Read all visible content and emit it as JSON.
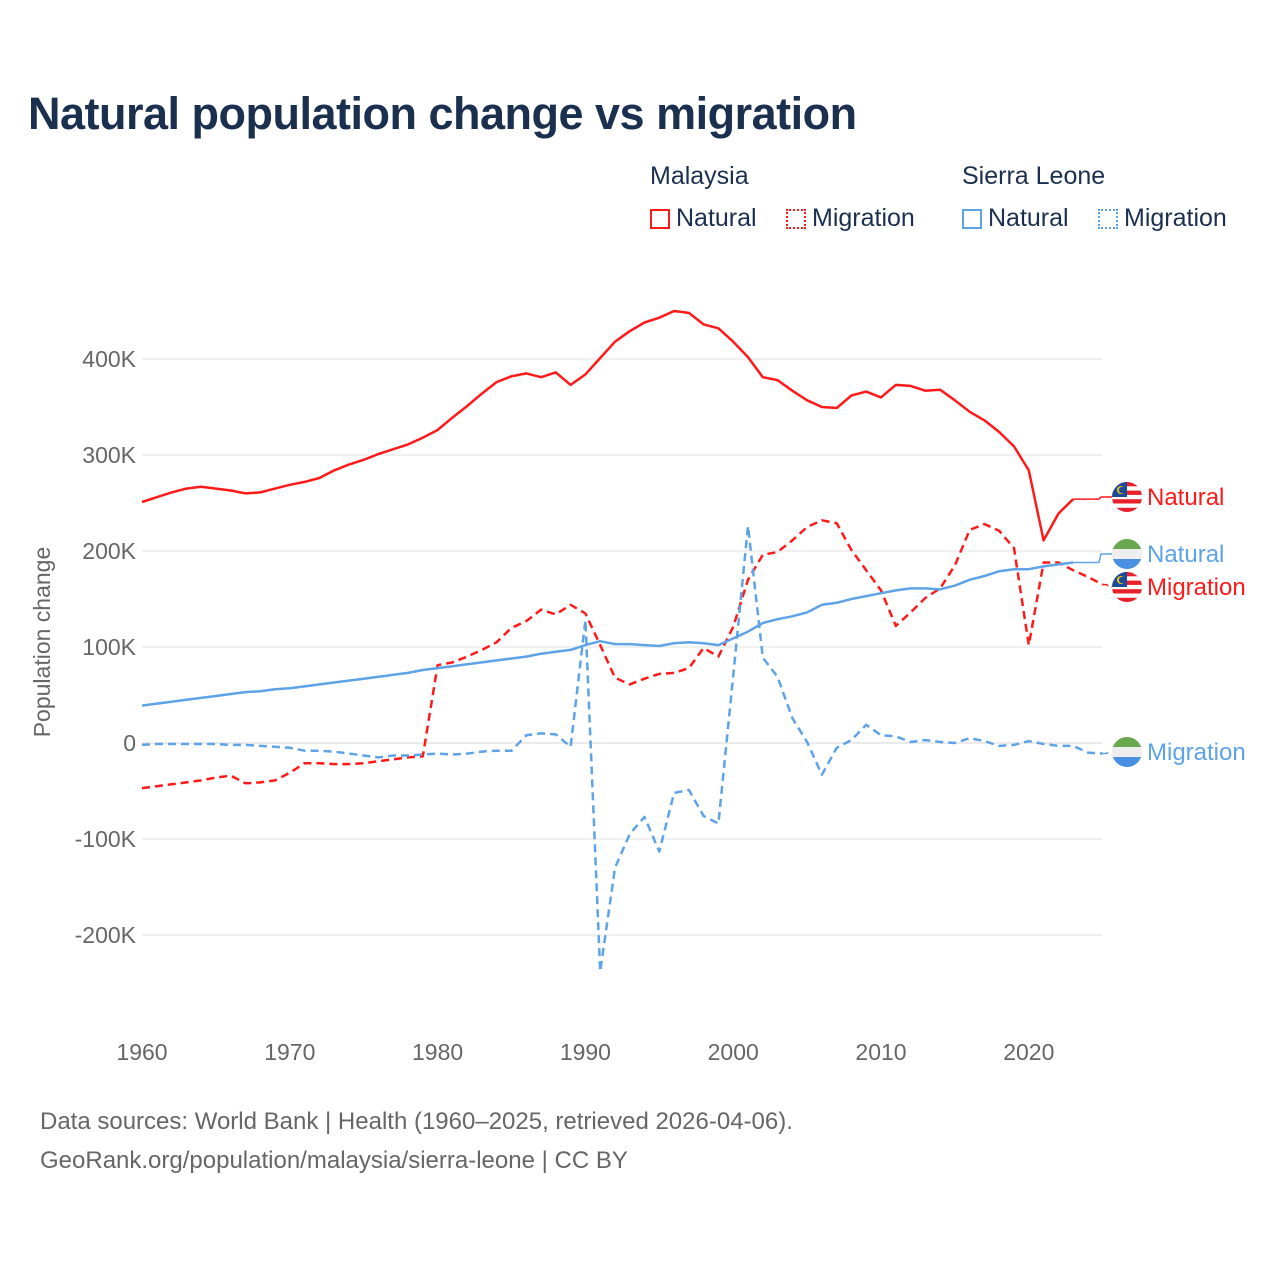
{
  "title": "Natural population change vs migration",
  "legend": {
    "groups": [
      {
        "name": "Malaysia",
        "items": [
          {
            "label": "Natural",
            "style": "solid"
          },
          {
            "label": "Migration",
            "style": "dotted"
          }
        ],
        "color": "#ff1a1a"
      },
      {
        "name": "Sierra Leone",
        "items": [
          {
            "label": "Natural",
            "style": "solid"
          },
          {
            "label": "Migration",
            "style": "dotted"
          }
        ],
        "color": "#5ea3e8"
      }
    ]
  },
  "footer": {
    "line1": "Data sources: World Bank | Health (1960–2025, retrieved 2026-04-06).",
    "line2": "GeoRank.org/population/malaysia/sierra-leone | CC BY"
  },
  "chart_data": {
    "type": "line",
    "title": "Natural population change vs migration",
    "xlabel": "",
    "ylabel": "Population change",
    "xlim": [
      1960,
      2025
    ],
    "ylim": [
      -250000,
      450000
    ],
    "x_ticks": [
      1960,
      1970,
      1980,
      1990,
      2000,
      2010,
      2020
    ],
    "x_tick_labels": [
      "1960",
      "1970",
      "1980",
      "1990",
      "2000",
      "2010",
      "2020"
    ],
    "y_ticks": [
      -200000,
      -100000,
      0,
      100000,
      200000,
      300000,
      400000
    ],
    "y_tick_labels": [
      "-200K",
      "-100K",
      "0",
      "100K",
      "200K",
      "300K",
      "400K"
    ],
    "grid": true,
    "units": "thousands",
    "series": [
      {
        "name": "Malaysia Natural",
        "end_label": "Natural",
        "country": "Malaysia",
        "color": "#ff1a1a",
        "dash": "solid",
        "start_year": 1960,
        "values": [
          251,
          256,
          261,
          265,
          267,
          265,
          263,
          260,
          261,
          265,
          269,
          272,
          276,
          284,
          290,
          295,
          301,
          306,
          311,
          318,
          326,
          339,
          351,
          364,
          376,
          382,
          385,
          381,
          386,
          373,
          384,
          401,
          418,
          429,
          438,
          443,
          450,
          448,
          436,
          432,
          418,
          402,
          381,
          378,
          367,
          357,
          350,
          349,
          362,
          366,
          360,
          373,
          372,
          367,
          368,
          357,
          345,
          336,
          324,
          309,
          284,
          211,
          239,
          254
        ]
      },
      {
        "name": "Malaysia Migration",
        "end_label": "Migration",
        "country": "Malaysia",
        "color": "#ff1a1a",
        "dash": "dashed",
        "start_year": 1960,
        "values": [
          -47,
          -45,
          -43,
          -41,
          -39,
          -36,
          -34,
          -42,
          -41,
          -39,
          -31,
          -21,
          -21,
          -22,
          -22,
          -21,
          -19,
          -17,
          -15,
          -14,
          81,
          84,
          90,
          97,
          105,
          120,
          127,
          139,
          134,
          144,
          135,
          102,
          68,
          61,
          67,
          72,
          73,
          78,
          99,
          90,
          121,
          170,
          196,
          199,
          211,
          225,
          232,
          229,
          201,
          180,
          159,
          122,
          136,
          151,
          161,
          185,
          222,
          228,
          221,
          203,
          102,
          188,
          188,
          180,
          173,
          165
        ]
      },
      {
        "name": "Sierra Leone Natural",
        "end_label": "Natural",
        "country": "Sierra Leone",
        "color": "#5ea3e8",
        "dash": "solid",
        "start_year": 1960,
        "values": [
          39,
          41,
          43,
          45,
          47,
          49,
          51,
          53,
          54,
          56,
          57,
          59,
          61,
          63,
          65,
          67,
          69,
          71,
          73,
          76,
          78,
          80,
          82,
          84,
          86,
          88,
          90,
          93,
          95,
          97,
          102,
          106,
          103,
          103,
          102,
          101,
          104,
          105,
          104,
          102,
          109,
          116,
          125,
          129,
          132,
          136,
          144,
          146,
          150,
          153,
          156,
          159,
          161,
          161,
          160,
          164,
          170,
          174,
          179,
          181,
          181,
          184,
          186,
          188
        ]
      },
      {
        "name": "Sierra Leone Migration",
        "end_label": "Migration",
        "country": "Sierra Leone",
        "color": "#5ea3e8",
        "dash": "dashed",
        "start_year": 1960,
        "values": [
          -2,
          -1,
          -1,
          -1,
          -1,
          -1,
          -2,
          -2,
          -3,
          -4,
          -5,
          -8,
          -8,
          -9,
          -11,
          -13,
          -15,
          -13,
          -13,
          -12,
          -11,
          -12,
          -11,
          -9,
          -8,
          -8,
          8,
          10,
          9,
          -4,
          128,
          -238,
          -130,
          -95,
          -77,
          -113,
          -52,
          -49,
          -76,
          -84,
          70,
          226,
          89,
          69,
          26,
          1,
          -33,
          -5,
          3,
          19,
          8,
          7,
          1,
          3,
          1,
          0,
          5,
          2,
          -3,
          -2,
          2,
          -1,
          -3,
          -3,
          -10,
          -11
        ]
      }
    ]
  }
}
